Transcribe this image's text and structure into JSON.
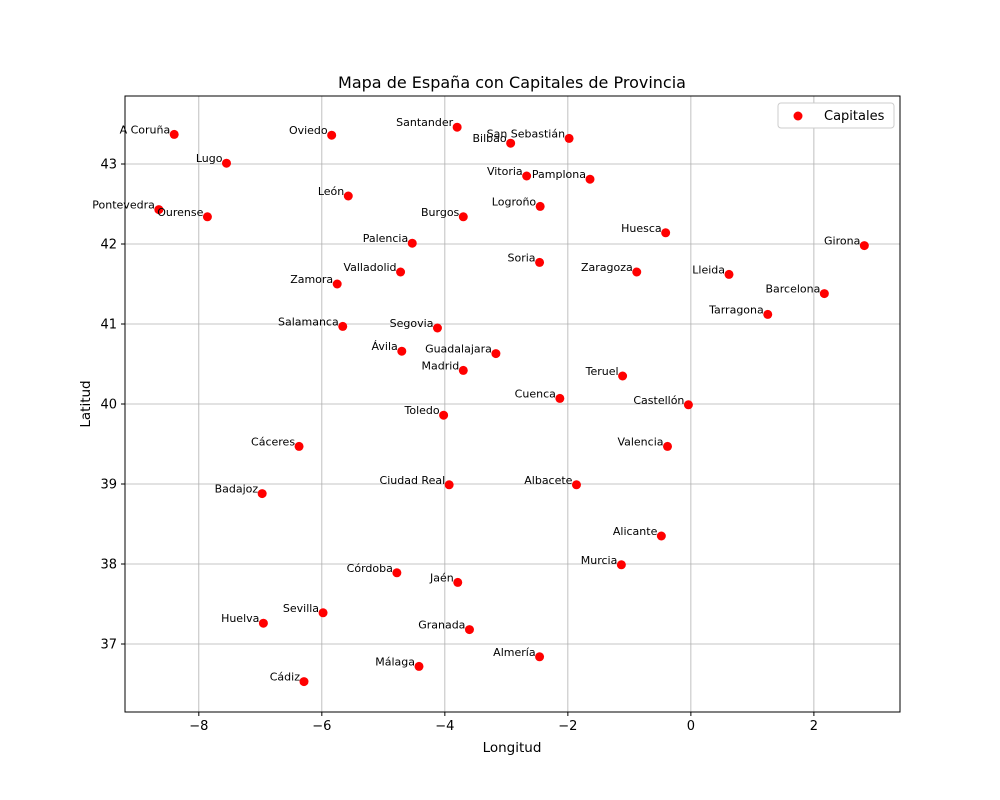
{
  "chart_data": {
    "type": "scatter",
    "title": "Mapa de España con Capitales de Provincia",
    "xlabel": "Longitud",
    "ylabel": "Latitud",
    "xlim": [
      -9.2,
      3.4
    ],
    "ylim": [
      36.15,
      43.85
    ],
    "xticks": [
      -8,
      -6,
      -4,
      -2,
      0,
      2
    ],
    "xtick_labels": [
      "−8",
      "−6",
      "−4",
      "−2",
      "0",
      "2"
    ],
    "yticks": [
      37,
      38,
      39,
      40,
      41,
      42,
      43
    ],
    "ytick_labels": [
      "37",
      "38",
      "39",
      "40",
      "41",
      "42",
      "43"
    ],
    "grid": true,
    "legend_position": "upper right",
    "series": [
      {
        "name": "Capitales",
        "color": "#ff0000",
        "points": [
          {
            "label": "A Coruña",
            "x": -8.4,
            "y": 43.37
          },
          {
            "label": "Lugo",
            "x": -7.55,
            "y": 43.01
          },
          {
            "label": "Oviedo",
            "x": -5.84,
            "y": 43.36
          },
          {
            "label": "Santander",
            "x": -3.8,
            "y": 43.46
          },
          {
            "label": "Bilbao",
            "x": -2.93,
            "y": 43.26
          },
          {
            "label": "San Sebastián",
            "x": -1.98,
            "y": 43.32
          },
          {
            "label": "Vitoria",
            "x": -2.67,
            "y": 42.85
          },
          {
            "label": "Pamplona",
            "x": -1.64,
            "y": 42.81
          },
          {
            "label": "León",
            "x": -5.57,
            "y": 42.6
          },
          {
            "label": "Pontevedra",
            "x": -8.65,
            "y": 42.43
          },
          {
            "label": "Ourense",
            "x": -7.86,
            "y": 42.34
          },
          {
            "label": "Burgos",
            "x": -3.7,
            "y": 42.34
          },
          {
            "label": "Logroño",
            "x": -2.45,
            "y": 42.47
          },
          {
            "label": "Huesca",
            "x": -0.41,
            "y": 42.14
          },
          {
            "label": "Girona",
            "x": 2.82,
            "y": 41.98
          },
          {
            "label": "Palencia",
            "x": -4.53,
            "y": 42.01
          },
          {
            "label": "Soria",
            "x": -2.46,
            "y": 41.77
          },
          {
            "label": "Zaragoza",
            "x": -0.88,
            "y": 41.65
          },
          {
            "label": "Lleida",
            "x": 0.62,
            "y": 41.62
          },
          {
            "label": "Valladolid",
            "x": -4.72,
            "y": 41.65
          },
          {
            "label": "Zamora",
            "x": -5.75,
            "y": 41.5
          },
          {
            "label": "Barcelona",
            "x": 2.17,
            "y": 41.38
          },
          {
            "label": "Tarragona",
            "x": 1.25,
            "y": 41.12
          },
          {
            "label": "Salamanca",
            "x": -5.66,
            "y": 40.97
          },
          {
            "label": "Segovia",
            "x": -4.12,
            "y": 40.95
          },
          {
            "label": "Ávila",
            "x": -4.7,
            "y": 40.66
          },
          {
            "label": "Guadalajara",
            "x": -3.17,
            "y": 40.63
          },
          {
            "label": "Madrid",
            "x": -3.7,
            "y": 40.42
          },
          {
            "label": "Teruel",
            "x": -1.11,
            "y": 40.35
          },
          {
            "label": "Cuenca",
            "x": -2.13,
            "y": 40.07
          },
          {
            "label": "Castellón",
            "x": -0.04,
            "y": 39.99
          },
          {
            "label": "Toledo",
            "x": -4.02,
            "y": 39.86
          },
          {
            "label": "Cáceres",
            "x": -6.37,
            "y": 39.47
          },
          {
            "label": "Valencia",
            "x": -0.38,
            "y": 39.47
          },
          {
            "label": "Ciudad Real",
            "x": -3.93,
            "y": 38.99
          },
          {
            "label": "Albacete",
            "x": -1.86,
            "y": 38.99
          },
          {
            "label": "Badajoz",
            "x": -6.97,
            "y": 38.88
          },
          {
            "label": "Alicante",
            "x": -0.48,
            "y": 38.35
          },
          {
            "label": "Murcia",
            "x": -1.13,
            "y": 37.99
          },
          {
            "label": "Córdoba",
            "x": -4.78,
            "y": 37.89
          },
          {
            "label": "Jaén",
            "x": -3.79,
            "y": 37.77
          },
          {
            "label": "Sevilla",
            "x": -5.98,
            "y": 37.39
          },
          {
            "label": "Huelva",
            "x": -6.95,
            "y": 37.26
          },
          {
            "label": "Granada",
            "x": -3.6,
            "y": 37.18
          },
          {
            "label": "Almería",
            "x": -2.46,
            "y": 36.84
          },
          {
            "label": "Málaga",
            "x": -4.42,
            "y": 36.72
          },
          {
            "label": "Cádiz",
            "x": -6.29,
            "y": 36.53
          }
        ]
      }
    ]
  }
}
